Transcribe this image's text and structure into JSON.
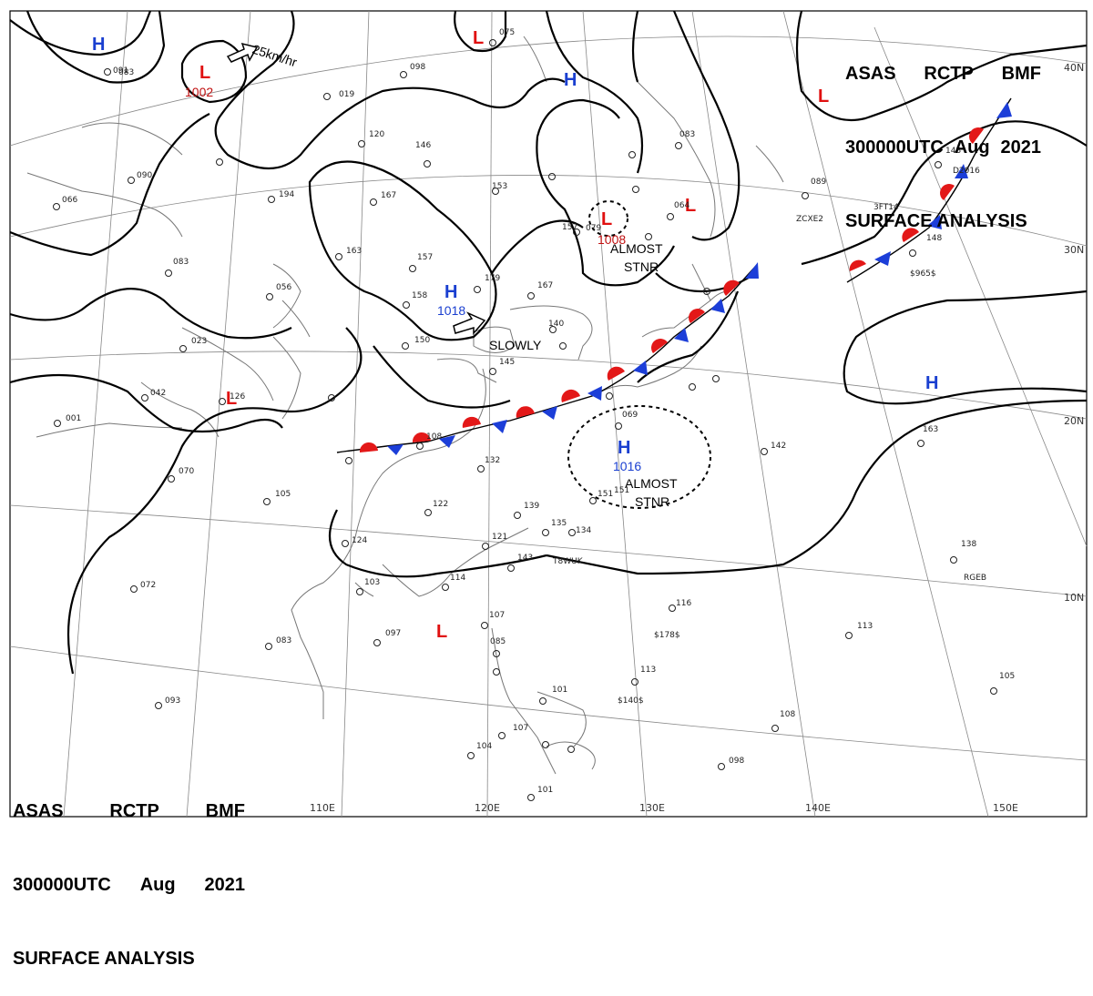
{
  "header": {
    "line1": [
      "ASAS",
      "RCTP",
      "BMF"
    ],
    "line2": [
      "300000UTC",
      "Aug",
      "2021"
    ],
    "line3": "SURFACE ANALYSIS"
  },
  "latitude_labels": [
    "40N",
    "30N",
    "20N",
    "10N"
  ],
  "longitude_labels": [
    "110E",
    "120E",
    "130E",
    "140E",
    "150E"
  ],
  "systems": [
    {
      "type": "H",
      "pressure": ""
    },
    {
      "type": "L",
      "pressure": "1002"
    },
    {
      "type": "L",
      "pressure": ""
    },
    {
      "type": "H",
      "pressure": ""
    },
    {
      "type": "L",
      "pressure": ""
    },
    {
      "type": "L",
      "pressure": "1008"
    },
    {
      "type": "H",
      "pressure": "1018"
    },
    {
      "type": "L",
      "pressure": ""
    },
    {
      "type": "H",
      "pressure": "1016"
    },
    {
      "type": "L",
      "pressure": ""
    },
    {
      "type": "H",
      "pressure": ""
    },
    {
      "type": "L",
      "pressure": ""
    }
  ],
  "annotations": {
    "motion": "25km/hr",
    "almost_stnr_1": [
      "ALMOST",
      "STNR"
    ],
    "almost_stnr_2": [
      "ALMOST",
      "STNR"
    ],
    "slowly": "SLOWLY"
  },
  "station_values": [
    "098",
    "120",
    "146",
    "153",
    "167",
    "194",
    "163",
    "157",
    "158",
    "179",
    "167",
    "150",
    "145",
    "140",
    "083",
    "090",
    "066",
    "083",
    "056",
    "023",
    "042",
    "001",
    "126",
    "108",
    "132",
    "122",
    "139",
    "135",
    "134",
    "121",
    "143",
    "114",
    "103",
    "097",
    "083",
    "107",
    "085",
    "113",
    "101",
    "107",
    "104",
    "101",
    "098",
    "116",
    "113",
    "105",
    "108",
    "138",
    "163",
    "142",
    "089",
    "148",
    "143",
    "157",
    "079",
    "064",
    "083",
    "075",
    "091",
    "070",
    "072",
    "093",
    "105",
    "124",
    "151",
    "151",
    "069",
    "019"
  ],
  "ship_ids": [
    "T8WUK",
    "$178$",
    "$140$",
    "ZCXE2",
    "3FT14",
    "$965$",
    "D2016",
    "RGEB"
  ]
}
